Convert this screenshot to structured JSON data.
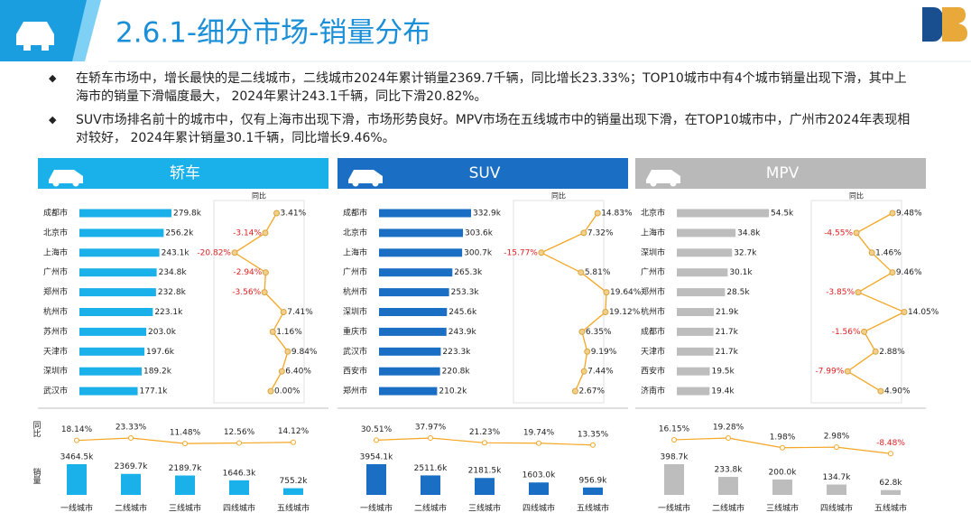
{
  "title": "2.6.1-细分市场-销量分布",
  "bullets": [
    "在轿车市场中，增长最快的是二线城市，二线城市2024年累计销量2369.7千辆，同比增长23.33%；TOP10城市中有4个城市销量出现下滑，其中上海市的销量下滑幅度最大， 2024年累计243.1千辆，同比下滑20.82%。",
    "SUV市场排名前十的城市中，仅有上海市出现下滑，市场形势良好。MPV市场在五线城市中的销量出现下滑，在TOP10城市中，广州市2024年表现相对较好， 2024年累计销量30.1千辆，同比增长9.46%。"
  ],
  "chart_data": [
    {
      "type": "bar",
      "title": "轿车",
      "color": "#1ab0ea",
      "line_title": "同比",
      "categories": [
        "成都市",
        "北京市",
        "上海市",
        "广州市",
        "郑州市",
        "杭州市",
        "苏州市",
        "天津市",
        "深圳市",
        "武汉市"
      ],
      "series": [
        {
          "color": "#1ab0ea",
          "values": [
            279.8,
            256.2,
            243.1,
            234.8,
            232.8,
            223.1,
            203,
            197.6,
            189.2,
            177.1
          ],
          "value_labels": [
            "279.8k",
            "256.2k",
            "243.1k",
            "234.8k",
            "232.8k",
            "223.1k",
            "203.0k",
            "197.6k",
            "189.2k",
            "177.1k"
          ]
        },
        {
          "color": "#f5a623",
          "values": [
            3.41,
            -3.14,
            -20.82,
            -2.94,
            -3.56,
            7.41,
            1.16,
            9.84,
            6.4,
            0
          ],
          "value_labels": [
            "3.41%",
            "-3.14%",
            "-20.82%",
            "-2.94%",
            "-3.56%",
            "7.41%",
            "1.16%",
            "9.84%",
            "6.40%",
            "0.00%"
          ]
        }
      ]
    },
    {
      "type": "bar",
      "axis_labels": [
        "同比",
        "销量"
      ],
      "categories": [
        "一线城市",
        "二线城市",
        "三线城市",
        "四线城市",
        "五线城市"
      ],
      "series": [
        {
          "color": "#1ab0ea",
          "values": [
            3464.5,
            2369.7,
            2189.7,
            1646.3,
            755.2
          ],
          "value_labels": [
            "3464.5k",
            "2369.7k",
            "2189.7k",
            "1646.3k",
            "755.2k"
          ]
        },
        {
          "color": "#f5a623",
          "values": [
            18.14,
            23.33,
            11.48,
            12.56,
            14.12
          ],
          "value_labels": [
            "18.14%",
            "23.33%",
            "11.48%",
            "12.56%",
            "14.12%"
          ]
        }
      ]
    },
    {
      "type": "bar",
      "title": "SUV",
      "color": "#1a6fc4",
      "line_title": "同比",
      "categories": [
        "成都市",
        "北京市",
        "上海市",
        "广州市",
        "杭州市",
        "深圳市",
        "重庆市",
        "武汉市",
        "西安市",
        "郑州市"
      ],
      "series": [
        {
          "color": "#1a6fc4",
          "values": [
            332.9,
            303.6,
            300.7,
            265.3,
            253.3,
            245.6,
            243.9,
            223.3,
            220.8,
            210.2
          ],
          "value_labels": [
            "332.9k",
            "303.6k",
            "300.7k",
            "265.3k",
            "253.3k",
            "245.6k",
            "243.9k",
            "223.3k",
            "220.8k",
            "210.2k"
          ]
        },
        {
          "color": "#f5a623",
          "values": [
            14.83,
            7.32,
            -15.77,
            5.81,
            19.64,
            19.12,
            6.35,
            9.19,
            7.44,
            2.67
          ],
          "value_labels": [
            "14.83%",
            "7.32%",
            "-15.77%",
            "5.81%",
            "19.64%",
            "19.12%",
            "6.35%",
            "9.19%",
            "7.44%",
            "2.67%"
          ]
        }
      ]
    },
    {
      "type": "bar",
      "categories": [
        "一线城市",
        "二线城市",
        "三线城市",
        "四线城市",
        "五线城市"
      ],
      "series": [
        {
          "color": "#1a6fc4",
          "values": [
            3954.1,
            2511.6,
            2181.5,
            1603,
            956.9
          ],
          "value_labels": [
            "3954.1k",
            "2511.6k",
            "2181.5k",
            "1603.0k",
            "956.9k"
          ]
        },
        {
          "color": "#f5a623",
          "values": [
            30.51,
            37.97,
            21.23,
            19.74,
            13.35
          ],
          "value_labels": [
            "30.51%",
            "37.97%",
            "21.23%",
            "19.74%",
            "13.35%"
          ]
        }
      ]
    },
    {
      "type": "bar",
      "title": "MPV",
      "color": "#b9b9b9",
      "line_title": "同比",
      "categories": [
        "北京市",
        "上海市",
        "深圳市",
        "广州市",
        "郑州市",
        "杭州市",
        "成都市",
        "天津市",
        "西安市",
        "济南市"
      ],
      "series": [
        {
          "color": "#bdbdbd",
          "values": [
            54.5,
            34.8,
            32.7,
            30.1,
            28.5,
            21.9,
            21.7,
            21.7,
            19.5,
            19.4
          ],
          "value_labels": [
            "54.5k",
            "34.8k",
            "32.7k",
            "30.1k",
            "28.5k",
            "21.9k",
            "21.7k",
            "21.7k",
            "19.5k",
            "19.4k"
          ]
        },
        {
          "color": "#f5a623",
          "values": [
            9.48,
            -4.55,
            1.46,
            9.46,
            -3.85,
            14.05,
            -1.56,
            2.88,
            -7.99,
            4.9
          ],
          "value_labels": [
            "9.48%",
            "-4.55%",
            "1.46%",
            "9.46%",
            "-3.85%",
            "14.05%",
            "-1.56%",
            "2.88%",
            "-7.99%",
            "4.90%"
          ]
        }
      ]
    },
    {
      "type": "bar",
      "categories": [
        "一线城市",
        "二线城市",
        "三线城市",
        "四线城市",
        "五线城市"
      ],
      "series": [
        {
          "color": "#bdbdbd",
          "values": [
            398.7,
            233.8,
            200,
            134.7,
            62.8
          ],
          "value_labels": [
            "398.7k",
            "233.8k",
            "200.0k",
            "134.7k",
            "62.8k"
          ]
        },
        {
          "color": "#f5a623",
          "values": [
            16.15,
            19.28,
            1.98,
            2.98,
            -8.48
          ],
          "value_labels": [
            "16.15%",
            "19.28%",
            "1.98%",
            "2.98%",
            "-8.48%"
          ]
        }
      ]
    }
  ]
}
